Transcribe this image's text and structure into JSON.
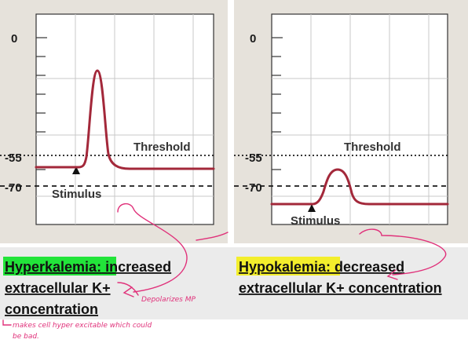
{
  "panels": [
    {
      "id": "left",
      "y_ticks": [
        "0",
        "-55",
        "-70"
      ],
      "threshold_label": "Threshold",
      "stimulus_label": "Stimulus",
      "caption_highlight": "Hyperkalemia:",
      "caption_rest": " increased",
      "caption_line2": "extracellular K+",
      "caption_line3": "concentration",
      "highlight_color": "#22e43a"
    },
    {
      "id": "right",
      "y_ticks": [
        "0",
        "-55",
        "-70"
      ],
      "threshold_label": "Threshold",
      "stimulus_label": "Stimulus",
      "caption_highlight": "Hypokalemia:",
      "caption_rest": " decreased",
      "caption_line2": "extracellular K+ concentration",
      "highlight_color": "#f3ee2c"
    }
  ],
  "annotations": {
    "note_depolarizes": "Depolarizes MP",
    "note_line1": "makes cell hyper excitable which could",
    "note_line2": "be bad."
  },
  "colors": {
    "trace": "#a3283a",
    "panel_background": "#e6e2db",
    "ink": "#e0317a"
  }
}
